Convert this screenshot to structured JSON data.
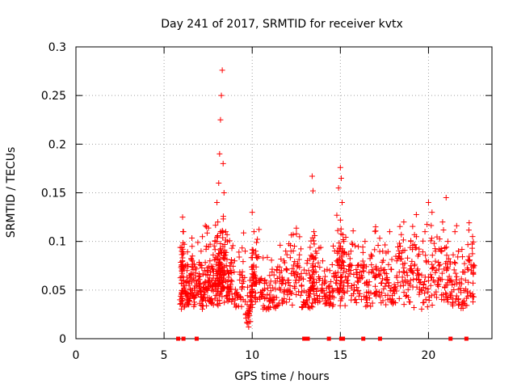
{
  "chart_data": {
    "type": "scatter",
    "title": "Day 241 of 2017, SRMTID for receiver kvtx",
    "xlabel": "GPS time / hours",
    "ylabel": "SRMTID / TECUs",
    "xlim": [
      0,
      23.6
    ],
    "ylim": [
      0,
      0.3
    ],
    "xticks": [
      0,
      5,
      10,
      15,
      20
    ],
    "yticks": [
      0,
      0.05,
      0.1,
      0.15,
      0.2,
      0.25,
      0.3
    ],
    "ytick_labels": [
      "0",
      "0.05",
      "0.1",
      "0.15",
      "0.2",
      "0.25",
      "0.3"
    ],
    "grid": true,
    "marker": "+",
    "color": "#ff0000",
    "series": [
      {
        "name": "SRMTID",
        "points": [
          [
            5.9,
            0.04
          ],
          [
            6.0,
            0.06
          ],
          [
            6.0,
            0.09
          ],
          [
            6.05,
            0.125
          ],
          [
            6.1,
            0.11
          ],
          [
            6.2,
            0.05
          ],
          [
            6.3,
            0.07
          ],
          [
            6.4,
            0.035
          ],
          [
            6.5,
            0.065
          ],
          [
            6.6,
            0.08
          ],
          [
            6.7,
            0.045
          ],
          [
            6.8,
            0.06
          ],
          [
            7.0,
            0.055
          ],
          [
            7.1,
            0.09
          ],
          [
            7.2,
            0.04
          ],
          [
            7.3,
            0.07
          ],
          [
            7.4,
            0.115
          ],
          [
            7.5,
            0.06
          ],
          [
            7.6,
            0.08
          ],
          [
            7.7,
            0.05
          ],
          [
            7.8,
            0.065
          ],
          [
            7.9,
            0.1
          ],
          [
            8.0,
            0.14
          ],
          [
            8.05,
            0.12
          ],
          [
            8.1,
            0.16
          ],
          [
            8.15,
            0.19
          ],
          [
            8.2,
            0.225
          ],
          [
            8.25,
            0.25
          ],
          [
            8.3,
            0.276
          ],
          [
            8.35,
            0.18
          ],
          [
            8.4,
            0.15
          ],
          [
            8.5,
            0.11
          ],
          [
            8.6,
            0.07
          ],
          [
            8.7,
            0.05
          ],
          [
            8.8,
            0.06
          ],
          [
            9.0,
            0.08
          ],
          [
            9.2,
            0.045
          ],
          [
            9.4,
            0.065
          ],
          [
            9.6,
            0.09
          ],
          [
            9.8,
            0.012
          ],
          [
            9.9,
            0.04
          ],
          [
            10.0,
            0.05
          ],
          [
            10.0,
            0.13
          ],
          [
            10.1,
            0.11
          ],
          [
            10.2,
            0.09
          ],
          [
            10.4,
            0.06
          ],
          [
            10.6,
            0.045
          ],
          [
            10.8,
            0.03
          ],
          [
            11.0,
            0.055
          ],
          [
            11.2,
            0.04
          ],
          [
            11.4,
            0.07
          ],
          [
            11.6,
            0.05
          ],
          [
            11.8,
            0.08
          ],
          [
            12.0,
            0.06
          ],
          [
            12.2,
            0.09
          ],
          [
            12.4,
            0.065
          ],
          [
            12.6,
            0.075
          ],
          [
            12.8,
            0.055
          ],
          [
            13.0,
            0.035
          ],
          [
            13.2,
            0.07
          ],
          [
            13.3,
            0.05
          ],
          [
            13.4,
            0.167
          ],
          [
            13.45,
            0.152
          ],
          [
            13.5,
            0.11
          ],
          [
            13.6,
            0.09
          ],
          [
            13.8,
            0.06
          ],
          [
            14.0,
            0.08
          ],
          [
            14.2,
            0.045
          ],
          [
            14.4,
            0.07
          ],
          [
            14.6,
            0.035
          ],
          [
            14.8,
            0.08
          ],
          [
            14.9,
            0.155
          ],
          [
            15.0,
            0.176
          ],
          [
            15.05,
            0.165
          ],
          [
            15.1,
            0.14
          ],
          [
            15.2,
            0.1
          ],
          [
            15.4,
            0.06
          ],
          [
            15.6,
            0.09
          ],
          [
            15.8,
            0.05
          ],
          [
            16.0,
            0.075
          ],
          [
            16.2,
            0.065
          ],
          [
            16.4,
            0.1
          ],
          [
            16.6,
            0.055
          ],
          [
            16.8,
            0.085
          ],
          [
            17.0,
            0.115
          ],
          [
            17.2,
            0.07
          ],
          [
            17.4,
            0.09
          ],
          [
            17.6,
            0.06
          ],
          [
            17.8,
            0.11
          ],
          [
            18.0,
            0.05
          ],
          [
            18.2,
            0.08
          ],
          [
            18.4,
            0.095
          ],
          [
            18.6,
            0.12
          ],
          [
            18.8,
            0.065
          ],
          [
            19.0,
            0.1
          ],
          [
            19.2,
            0.075
          ],
          [
            19.4,
            0.085
          ],
          [
            19.6,
            0.05
          ],
          [
            19.8,
            0.11
          ],
          [
            20.0,
            0.14
          ],
          [
            20.2,
            0.13
          ],
          [
            20.4,
            0.09
          ],
          [
            20.6,
            0.075
          ],
          [
            20.8,
            0.12
          ],
          [
            21.0,
            0.145
          ],
          [
            21.1,
            0.1
          ],
          [
            21.3,
            0.06
          ],
          [
            21.5,
            0.11
          ],
          [
            21.7,
            0.09
          ],
          [
            21.9,
            0.035
          ],
          [
            22.1,
            0.06
          ],
          [
            22.3,
            0.08
          ],
          [
            22.5,
            0.105
          ],
          [
            22.6,
            0.075
          ]
        ]
      }
    ],
    "baseline_markers_x": [
      5.8,
      6.1,
      6.85,
      12.95,
      13.15,
      14.35,
      15.05,
      15.15,
      16.3,
      17.25,
      21.25,
      22.15
    ]
  }
}
